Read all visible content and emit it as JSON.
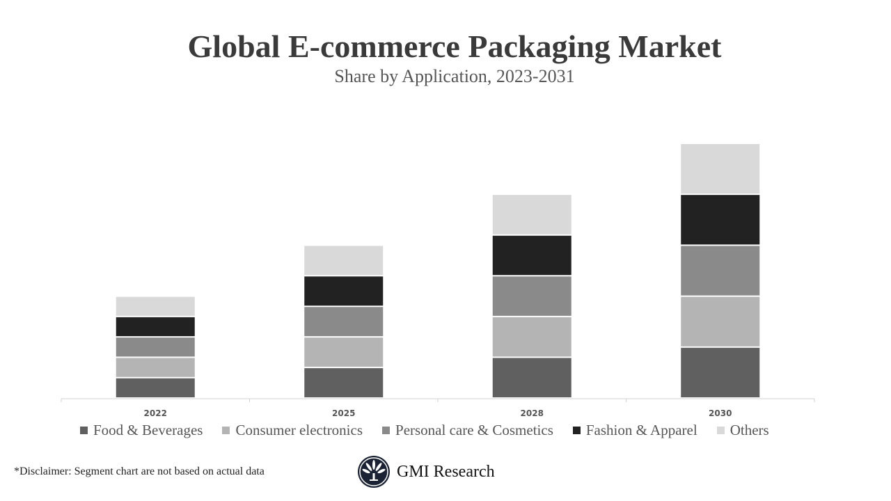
{
  "title": "Global E-commerce Packaging Market",
  "subtitle": "Share by Application, 2023-2031",
  "chart_data": {
    "type": "bar",
    "stacked": true,
    "categories": [
      "2022",
      "2025",
      "2028",
      "2030"
    ],
    "series": [
      {
        "name": "Food & Beverages",
        "color": "#606060",
        "values": [
          20,
          30,
          40,
          50
        ]
      },
      {
        "name": "Consumer electronics",
        "color": "#b4b4b4",
        "values": [
          20,
          30,
          40,
          50
        ]
      },
      {
        "name": "Personal care & Cosmetics",
        "color": "#8a8a8a",
        "values": [
          20,
          30,
          40,
          50
        ]
      },
      {
        "name": "Fashion & Apparel",
        "color": "#222222",
        "values": [
          20,
          30,
          40,
          50
        ]
      },
      {
        "name": "Others",
        "color": "#d9d9d9",
        "values": [
          20,
          30,
          40,
          50
        ]
      }
    ],
    "ylim": [
      0,
      250
    ],
    "y_axis_shown": false,
    "grid": false,
    "legend_position": "bottom"
  },
  "disclaimer": "*Disclaimer:   Segment chart are not based on actual data",
  "logo_text": "GMI Research"
}
